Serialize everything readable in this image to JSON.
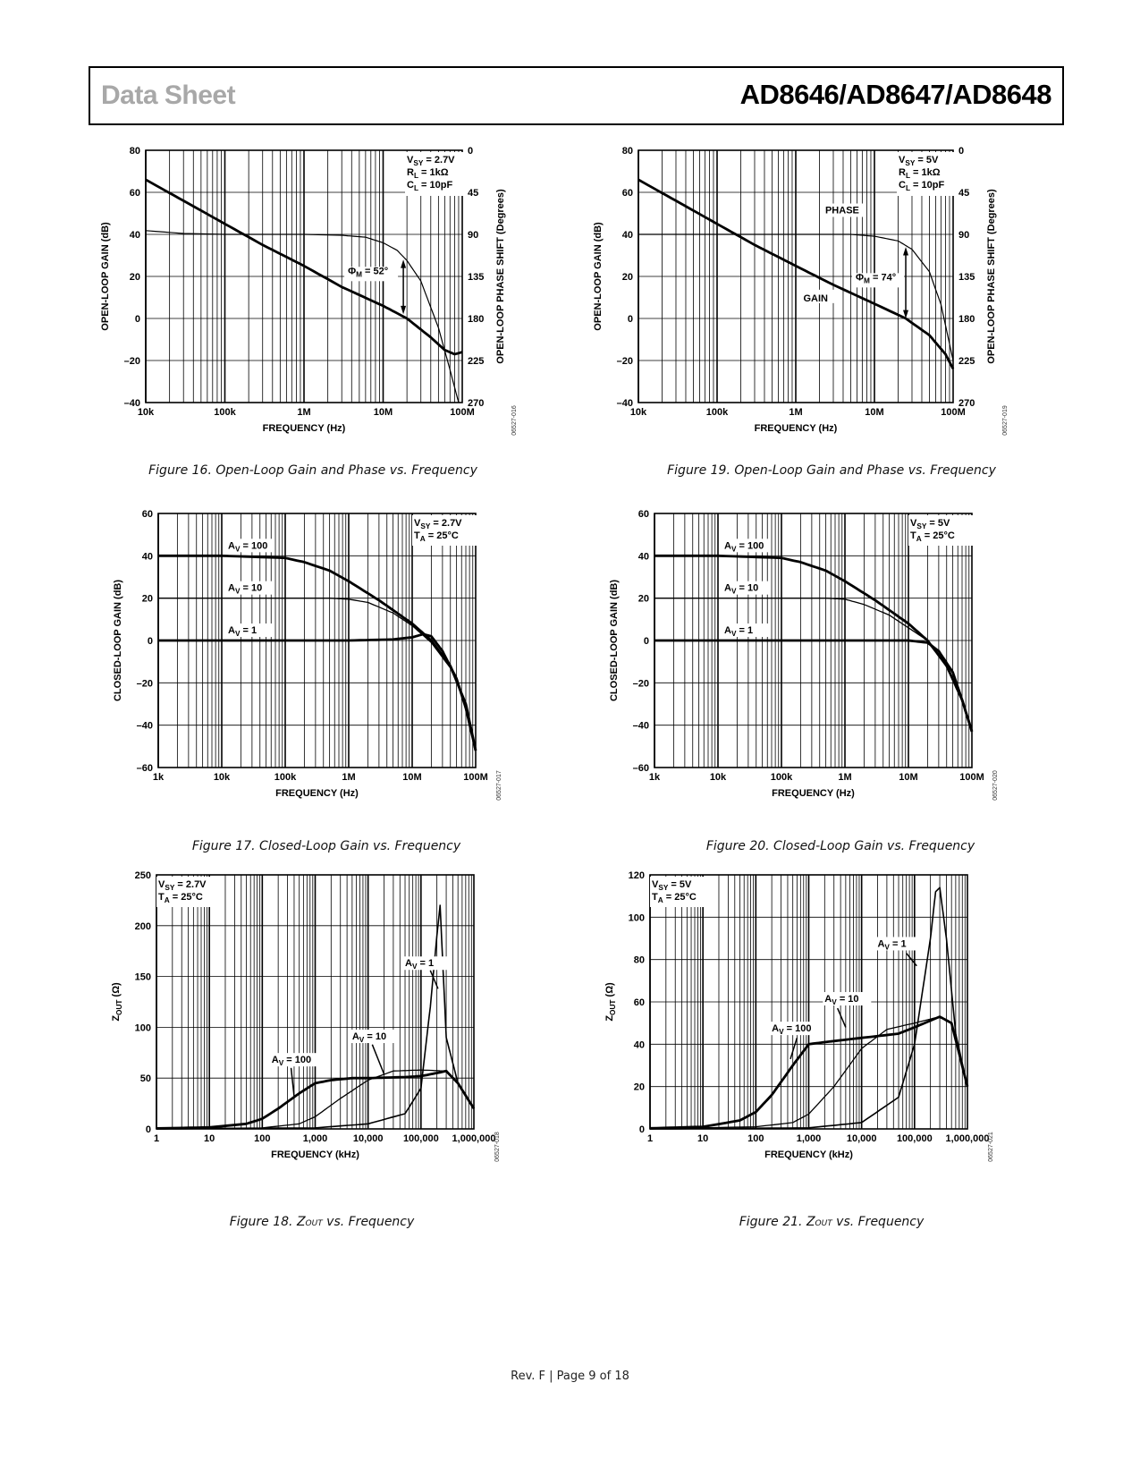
{
  "header": {
    "left": "Data Sheet",
    "right": "AD8646/AD8647/AD8648"
  },
  "footer": "Rev. F | Page 9 of 18",
  "figures": [
    {
      "caption": "Figure 16. Open-Loop Gain and Phase vs. Frequency",
      "code": "06527-016"
    },
    {
      "caption": "Figure 19. Open-Loop Gain and Phase vs. Frequency",
      "code": "06527-019"
    },
    {
      "caption": "Figure 17. Closed-Loop Gain vs. Frequency",
      "code": "06527-017"
    },
    {
      "caption": "Figure 20. Closed-Loop Gain vs. Frequency",
      "code": "06527-020"
    },
    {
      "caption_prefix": "Figure 18. Z",
      "caption_sub": "OUT",
      "caption_suffix": " vs. Frequency",
      "code": "06527-018"
    },
    {
      "caption_prefix": "Figure 21. Z",
      "caption_sub": "OUT",
      "caption_suffix": " vs. Frequency",
      "code": "06527-021"
    }
  ],
  "chart_data": [
    {
      "type": "line",
      "figure": "Figure 16",
      "xlabel": "FREQUENCY (Hz)",
      "xscale": "log",
      "xlim": [
        10000,
        100000000
      ],
      "xticks": [
        "10k",
        "100k",
        "1M",
        "10M",
        "100M"
      ],
      "ylabel": "OPEN-LOOP GAIN (dB)",
      "ylim": [
        -40,
        80
      ],
      "yticks": [
        "–40",
        "–20",
        "0",
        "20",
        "40",
        "60",
        "80"
      ],
      "y2label": "OPEN-LOOP PHASE SHIFT (Degrees)",
      "y2lim": [
        0,
        270
      ],
      "y2ticks": [
        "0",
        "45",
        "90",
        "135",
        "180",
        "225",
        "270"
      ],
      "conditions": [
        {
          "main": "V",
          "sub": "SY",
          "rest": " = 2.7V"
        },
        {
          "main": "R",
          "sub": "L",
          "rest": " = 1kΩ"
        },
        {
          "main": "C",
          "sub": "L",
          "rest": " = 10pF"
        }
      ],
      "annotations": [
        {
          "main": "Φ",
          "sub": "M",
          "rest": " = 52°"
        }
      ],
      "series": [
        {
          "axis": "left",
          "x": [
            10000,
            30000,
            100000,
            300000,
            1000000,
            3000000,
            10000000,
            20000000,
            40000000,
            60000000,
            80000000,
            100000000
          ],
          "y": [
            66,
            56,
            45,
            35,
            25,
            15,
            6,
            0,
            -9,
            -15,
            -17,
            -16
          ]
        },
        {
          "axis": "right",
          "x": [
            10000,
            30000,
            100000,
            1000000,
            3000000,
            6000000,
            10000000,
            15000000,
            20000000,
            30000000,
            50000000,
            70000000,
            90000000
          ],
          "y": [
            86,
            89,
            90,
            90,
            91,
            93,
            99,
            107,
            118,
            140,
            190,
            235,
            270
          ]
        }
      ]
    },
    {
      "type": "line",
      "figure": "Figure 19",
      "xlabel": "FREQUENCY (Hz)",
      "xscale": "log",
      "xlim": [
        10000,
        100000000
      ],
      "xticks": [
        "10k",
        "100k",
        "1M",
        "10M",
        "100M"
      ],
      "ylabel": "OPEN-LOOP GAIN (dB)",
      "ylim": [
        -40,
        80
      ],
      "yticks": [
        "–40",
        "–20",
        "0",
        "20",
        "40",
        "60",
        "80"
      ],
      "y2label": "OPEN-LOOP PHASE SHIFT (Degrees)",
      "y2lim": [
        0,
        270
      ],
      "y2ticks": [
        "0",
        "45",
        "90",
        "135",
        "180",
        "225",
        "270"
      ],
      "conditions": [
        {
          "main": "V",
          "sub": "SY",
          "rest": " = 5V"
        },
        {
          "main": "R",
          "sub": "L",
          "rest": " = 1kΩ"
        },
        {
          "main": "C",
          "sub": "L",
          "rest": " = 10pF"
        }
      ],
      "labels": [
        "PHASE",
        "GAIN"
      ],
      "annotations": [
        {
          "main": "Φ",
          "sub": "M",
          "rest": " = 74°"
        }
      ],
      "series": [
        {
          "axis": "left",
          "x": [
            10000,
            30000,
            100000,
            300000,
            1000000,
            3000000,
            10000000,
            25000000,
            50000000,
            80000000,
            100000000
          ],
          "y": [
            66,
            56,
            45,
            35,
            25,
            16,
            7,
            0,
            -8,
            -17,
            -24
          ]
        },
        {
          "axis": "right",
          "x": [
            10000,
            100000,
            1000000,
            5000000,
            10000000,
            20000000,
            30000000,
            50000000,
            70000000,
            100000000
          ],
          "y": [
            90,
            90,
            90,
            90,
            92,
            97,
            106,
            130,
            165,
            225
          ]
        }
      ]
    },
    {
      "type": "line",
      "figure": "Figure 17",
      "xlabel": "FREQUENCY (Hz)",
      "xscale": "log",
      "xlim": [
        1000,
        100000000
      ],
      "xticks": [
        "1k",
        "10k",
        "100k",
        "1M",
        "10M",
        "100M"
      ],
      "ylabel": "CLOSED-LOOP GAIN (dB)",
      "ylim": [
        -60,
        60
      ],
      "yticks": [
        "–60",
        "–40",
        "–20",
        "0",
        "20",
        "40",
        "60"
      ],
      "conditions": [
        {
          "main": "V",
          "sub": "SY",
          "rest": " = 2.7V"
        },
        {
          "main": "T",
          "sub": "A",
          "rest": " = 25°C"
        }
      ],
      "series": [
        {
          "name": "A_V = 100",
          "x": [
            1000,
            10000,
            100000,
            200000,
            500000,
            1000000,
            3000000,
            10000000,
            20000000,
            40000000,
            70000000,
            100000000
          ],
          "y": [
            40,
            40,
            39,
            37,
            33,
            28,
            19,
            8,
            0,
            -12,
            -30,
            -52
          ]
        },
        {
          "name": "A_V = 10",
          "x": [
            1000,
            100000,
            500000,
            1000000,
            2000000,
            5000000,
            10000000,
            20000000,
            40000000,
            70000000,
            100000000
          ],
          "y": [
            20,
            20,
            20,
            19.5,
            18,
            13,
            7,
            -1,
            -13,
            -30,
            -52
          ]
        },
        {
          "name": "A_V = 1",
          "x": [
            1000,
            1000000,
            5000000,
            10000000,
            15000000,
            20000000,
            30000000,
            50000000,
            70000000,
            100000000
          ],
          "y": [
            0,
            0,
            0.5,
            1.5,
            3,
            2,
            -5,
            -18,
            -32,
            -52
          ]
        }
      ]
    },
    {
      "type": "line",
      "figure": "Figure 20",
      "xlabel": "FREQUENCY (Hz)",
      "xscale": "log",
      "xlim": [
        1000,
        100000000
      ],
      "xticks": [
        "1k",
        "10k",
        "100k",
        "1M",
        "10M",
        "100M"
      ],
      "ylabel": "CLOSED-LOOP GAIN (dB)",
      "ylim": [
        -60,
        60
      ],
      "yticks": [
        "–60",
        "–40",
        "–20",
        "0",
        "20",
        "40",
        "60"
      ],
      "conditions": [
        {
          "main": "V",
          "sub": "SY",
          "rest": " = 5V"
        },
        {
          "main": "T",
          "sub": "A",
          "rest": " = 25°C"
        }
      ],
      "series": [
        {
          "name": "A_V = 100",
          "x": [
            1000,
            10000,
            100000,
            200000,
            500000,
            1000000,
            3000000,
            10000000,
            20000000,
            40000000,
            70000000,
            100000000
          ],
          "y": [
            40,
            40,
            39,
            37,
            33,
            28,
            19,
            8,
            0,
            -12,
            -28,
            -43
          ]
        },
        {
          "name": "A_V = 10",
          "x": [
            1000,
            100000,
            500000,
            1000000,
            2000000,
            5000000,
            10000000,
            20000000,
            40000000,
            70000000,
            100000000
          ],
          "y": [
            20,
            20,
            20,
            19.5,
            17,
            12,
            6,
            0,
            -12,
            -28,
            -43
          ]
        },
        {
          "name": "A_V = 1",
          "x": [
            1000,
            1000000,
            5000000,
            10000000,
            20000000,
            30000000,
            50000000,
            70000000,
            100000000
          ],
          "y": [
            0,
            0,
            0,
            0,
            -1,
            -5,
            -15,
            -28,
            -43
          ]
        }
      ]
    },
    {
      "type": "line",
      "figure": "Figure 18",
      "xlabel": "FREQUENCY (kHz)",
      "xscale": "log",
      "xlim": [
        1,
        1000000
      ],
      "xticks": [
        "1",
        "10",
        "100",
        "1,000",
        "10,000",
        "100,000",
        "1,000,000"
      ],
      "ylabel": {
        "main": "Z",
        "sub": "OUT",
        "rest": " (Ω)"
      },
      "ylim": [
        0,
        250
      ],
      "yticks": [
        "0",
        "50",
        "100",
        "150",
        "200",
        "250"
      ],
      "conditions": [
        {
          "main": "V",
          "sub": "SY",
          "rest": " = 2.7V"
        },
        {
          "main": "T",
          "sub": "A",
          "rest": " = 25°C"
        }
      ],
      "series": [
        {
          "name": "A_V = 100",
          "x": [
            1,
            10,
            50,
            100,
            200,
            500,
            1000,
            2000,
            5000,
            10000,
            50000,
            100000,
            200000,
            300000,
            500000,
            1000000
          ],
          "y": [
            0.5,
            1.5,
            5,
            10,
            20,
            35,
            45,
            48,
            50,
            50,
            51,
            52,
            55,
            57,
            45,
            20
          ]
        },
        {
          "name": "A_V = 10",
          "x": [
            1,
            100,
            500,
            1000,
            3000,
            10000,
            30000,
            100000,
            300000,
            500000,
            1000000
          ],
          "y": [
            0,
            1,
            5,
            12,
            30,
            48,
            57,
            58,
            57,
            45,
            20
          ]
        },
        {
          "name": "A_V = 1",
          "x": [
            1,
            1000,
            10000,
            50000,
            100000,
            150000,
            200000,
            230000,
            300000,
            500000,
            1000000
          ],
          "y": [
            0,
            1,
            5,
            15,
            40,
            120,
            190,
            220,
            90,
            45,
            20
          ]
        }
      ]
    },
    {
      "type": "line",
      "figure": "Figure 21",
      "xlabel": "FREQUENCY (kHz)",
      "xscale": "log",
      "xlim": [
        1,
        1000000
      ],
      "xticks": [
        "1",
        "10",
        "100",
        "1,000",
        "10,000",
        "100,000",
        "1,000,000"
      ],
      "ylabel": {
        "main": "Z",
        "sub": "OUT",
        "rest": " (Ω)"
      },
      "ylim": [
        0,
        120
      ],
      "yticks": [
        "0",
        "20",
        "40",
        "60",
        "80",
        "100",
        "120"
      ],
      "conditions": [
        {
          "main": "V",
          "sub": "SY",
          "rest": " = 5V"
        },
        {
          "main": "T",
          "sub": "A",
          "rest": " = 25°C"
        }
      ],
      "series": [
        {
          "name": "A_V = 100",
          "x": [
            1,
            10,
            50,
            100,
            200,
            500,
            1000,
            2000,
            10000,
            50000,
            100000,
            300000,
            500000,
            1000000
          ],
          "y": [
            0.3,
            1,
            4,
            8,
            16,
            30,
            40,
            41,
            43,
            45,
            48,
            53,
            50,
            20
          ]
        },
        {
          "name": "A_V = 10",
          "x": [
            1,
            100,
            500,
            1000,
            3000,
            10000,
            30000,
            100000,
            300000,
            500000,
            1000000
          ],
          "y": [
            0,
            1,
            3,
            7,
            20,
            38,
            47,
            50,
            53,
            50,
            20
          ]
        },
        {
          "name": "A_V = 1",
          "x": [
            1,
            1000,
            10000,
            50000,
            100000,
            200000,
            250000,
            300000,
            400000,
            600000,
            1000000
          ],
          "y": [
            0,
            0.5,
            3,
            15,
            40,
            90,
            112,
            114,
            90,
            45,
            20
          ]
        }
      ]
    }
  ],
  "labels": {
    "av100": {
      "main": "A",
      "sub": "V",
      "rest": " = 100"
    },
    "av10": {
      "main": "A",
      "sub": "V",
      "rest": " = 10"
    },
    "av1": {
      "main": "A",
      "sub": "V",
      "rest": " = 1"
    }
  }
}
